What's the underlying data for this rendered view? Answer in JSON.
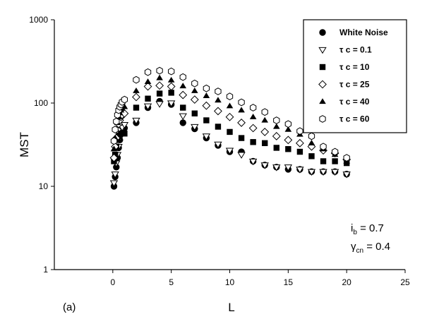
{
  "chart_data": {
    "type": "scatter",
    "panel_label": "(a)",
    "xlabel": "L",
    "ylabel": "MST",
    "xlim": [
      -5,
      25
    ],
    "ylim": [
      1,
      1000
    ],
    "y_scale": "log",
    "x_ticks": [
      0,
      5,
      10,
      15,
      20,
      25
    ],
    "y_ticks": [
      {
        "value": 1,
        "label": "1"
      },
      {
        "value": 10,
        "label": "10"
      },
      {
        "value": 100,
        "label": "100"
      },
      {
        "value": 1000,
        "label": "1000"
      }
    ],
    "grid": false,
    "legend_position": "top-right",
    "annotations": [
      {
        "main": "i",
        "sub": "b",
        "rest": " = 0.7"
      },
      {
        "main": "γ",
        "sub": "cn",
        "rest": " = 0.4"
      }
    ],
    "series": [
      {
        "name": "White Noise",
        "marker": "circle-filled",
        "x": [
          0.1,
          0.2,
          0.3,
          0.4,
          0.5,
          0.6,
          0.7,
          0.8,
          1,
          2,
          3,
          4,
          5,
          6,
          7,
          8,
          9,
          10,
          11,
          12,
          13,
          14,
          15,
          16,
          17,
          18,
          19,
          20
        ],
        "y": [
          10,
          13,
          17,
          22,
          29,
          36,
          43,
          47,
          50,
          58,
          88,
          105,
          96,
          58,
          49,
          38,
          31,
          26,
          26,
          20,
          18,
          17,
          16,
          16,
          15,
          15,
          15,
          14
        ]
      },
      {
        "name": "τ c = 0.1",
        "marker": "triangle-down-open",
        "x": [
          0.1,
          0.2,
          0.3,
          0.4,
          0.5,
          0.6,
          0.7,
          0.8,
          1,
          2,
          3,
          4,
          5,
          6,
          7,
          8,
          9,
          10,
          11,
          12,
          13,
          14,
          15,
          16,
          17,
          18,
          19,
          20
        ],
        "y": [
          11,
          14,
          19,
          24,
          30,
          38,
          46,
          51,
          55,
          62,
          92,
          98,
          100,
          70,
          52,
          40,
          32,
          27,
          24,
          20,
          18,
          17,
          17,
          16,
          15,
          15,
          15,
          14
        ]
      },
      {
        "name": "τ c = 10",
        "marker": "square-filled",
        "x": [
          0.1,
          0.2,
          0.3,
          0.4,
          0.5,
          0.6,
          0.8,
          1,
          2,
          3,
          4,
          5,
          6,
          7,
          8,
          9,
          10,
          11,
          12,
          13,
          14,
          15,
          16,
          17,
          18,
          19,
          20
        ],
        "y": [
          20,
          24,
          30,
          36,
          40,
          42,
          44,
          43,
          88,
          113,
          130,
          133,
          88,
          75,
          62,
          52,
          45,
          38,
          34,
          33,
          29,
          28,
          26,
          23,
          20,
          20,
          19
        ]
      },
      {
        "name": "τ c = 25",
        "marker": "diamond-open",
        "x": [
          0.1,
          0.2,
          0.3,
          0.4,
          0.5,
          0.6,
          0.7,
          0.8,
          1,
          2,
          3,
          4,
          5,
          6,
          7,
          8,
          9,
          10,
          11,
          12,
          13,
          14,
          15,
          16,
          17,
          18,
          19,
          20
        ],
        "y": [
          22,
          30,
          38,
          48,
          56,
          62,
          68,
          72,
          75,
          118,
          158,
          162,
          158,
          125,
          110,
          93,
          80,
          68,
          58,
          50,
          45,
          40,
          36,
          33,
          30,
          27,
          25,
          21
        ]
      },
      {
        "name": "τ c = 40",
        "marker": "triangle-up-filled",
        "x": [
          0.1,
          0.2,
          0.3,
          0.4,
          0.5,
          0.6,
          0.7,
          0.8,
          1,
          2,
          3,
          4,
          5,
          6,
          7,
          8,
          9,
          10,
          11,
          12,
          13,
          14,
          15,
          16,
          17,
          18,
          19,
          20
        ],
        "y": [
          28,
          38,
          48,
          58,
          68,
          76,
          82,
          86,
          90,
          140,
          180,
          200,
          188,
          160,
          140,
          122,
          108,
          92,
          82,
          68,
          62,
          52,
          48,
          42,
          33,
          28,
          24,
          20
        ]
      },
      {
        "name": "τ c = 60",
        "marker": "hexagon-open",
        "x": [
          0.1,
          0.2,
          0.3,
          0.4,
          0.5,
          0.6,
          0.7,
          0.8,
          1,
          2,
          3,
          4,
          5,
          6,
          7,
          8,
          9,
          10,
          11,
          12,
          13,
          14,
          15,
          16,
          17,
          18,
          19,
          20
        ],
        "y": [
          35,
          48,
          60,
          72,
          82,
          90,
          96,
          103,
          110,
          190,
          235,
          245,
          240,
          205,
          172,
          150,
          138,
          120,
          102,
          88,
          78,
          62,
          56,
          46,
          40,
          30,
          26,
          22
        ]
      }
    ]
  }
}
